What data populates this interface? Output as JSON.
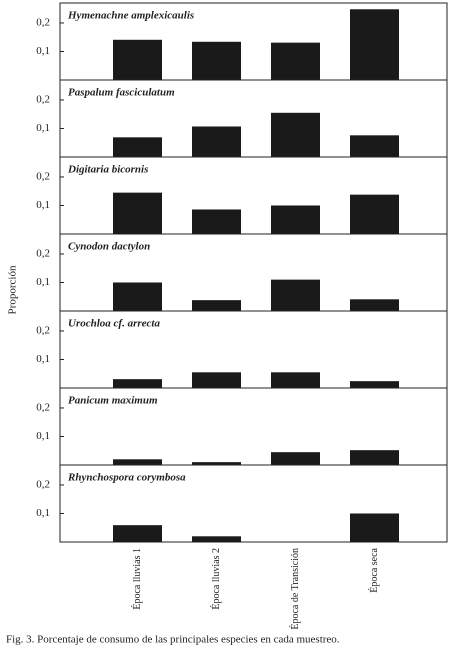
{
  "chart_data": {
    "type": "bar",
    "y_label": "Proporción",
    "categories": [
      "Época lluvias 1",
      "Época lluvias 2",
      "Época de Transición",
      "Época seca"
    ],
    "ylim": [
      0,
      0.27
    ],
    "yticks": [
      {
        "value": 0.1,
        "label": "0,1"
      },
      {
        "value": 0.2,
        "label": "0,2"
      }
    ],
    "series": [
      {
        "name": "Hymenachne amplexicaulis",
        "color": "#1a1a1a",
        "values": [
          0.141,
          0.134,
          0.131,
          0.248
        ]
      },
      {
        "name": "Paspalum fasciculatum",
        "color": "#1a1a1a",
        "values": [
          0.069,
          0.107,
          0.155,
          0.076
        ]
      },
      {
        "name": "Digitaria bicornis",
        "color": "#1a1a1a",
        "values": [
          0.145,
          0.086,
          0.1,
          0.138
        ]
      },
      {
        "name": "Cynodon dactylon",
        "color": "#1a1a1a",
        "values": [
          0.1,
          0.038,
          0.11,
          0.041
        ]
      },
      {
        "name": "Urochloa cf. arrecta",
        "color": "#1a1a1a",
        "values": [
          0.031,
          0.055,
          0.055,
          0.024
        ]
      },
      {
        "name": "Panicum maximum",
        "color": "#1a1a1a",
        "values": [
          0.02,
          0.01,
          0.045,
          0.052
        ]
      },
      {
        "name": "Rhynchospora corymbosa",
        "color": "#1a1a1a",
        "values": [
          0.059,
          0.02,
          null,
          0.1
        ]
      }
    ]
  },
  "caption": "Fig. 3. Porcentaje de consumo de las principales especies en cada muestreo."
}
